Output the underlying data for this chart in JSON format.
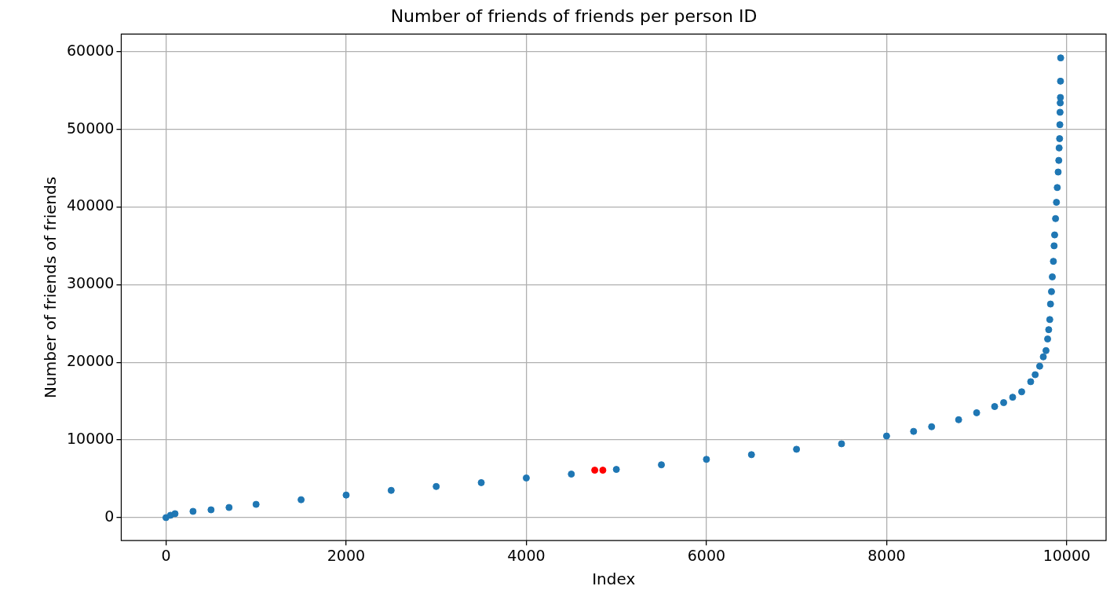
{
  "chart_data": {
    "type": "scatter",
    "title": "Number of friends of friends per person ID",
    "xlabel": "Index",
    "ylabel": "Number of friends of friends",
    "xlim": [
      -497,
      10437
    ],
    "xticks": [
      0,
      2000,
      4000,
      6000,
      8000,
      10000
    ],
    "ylim": [
      -2965,
      62265
    ],
    "yticks": [
      0,
      10000,
      20000,
      30000,
      40000,
      50000,
      60000
    ],
    "grid": true,
    "legend": false,
    "marker": "circle",
    "series": [
      {
        "color": "#1f77b4",
        "x": [
          0,
          50,
          100,
          300,
          500,
          700,
          1000,
          1500,
          2000,
          2500,
          3000,
          3500,
          4000,
          4500,
          5000,
          5500,
          6000,
          6500,
          7000,
          7500,
          8000,
          8300,
          8500,
          8800,
          9000,
          9200,
          9300,
          9400,
          9500,
          9600,
          9650,
          9700,
          9740,
          9770,
          9788,
          9800,
          9812,
          9820,
          9831,
          9840,
          9852,
          9860,
          9866,
          9876,
          9886,
          9895,
          9905,
          9912,
          9916,
          9921,
          9924,
          9926,
          9928,
          9930,
          9931,
          9933
        ],
        "values": [
          0,
          300,
          500,
          800,
          1000,
          1300,
          1700,
          2300,
          2900,
          3500,
          4000,
          4500,
          5100,
          5600,
          6200,
          6800,
          7500,
          8100,
          8800,
          9500,
          10500,
          11100,
          11700,
          12600,
          13500,
          14300,
          14800,
          15500,
          16200,
          17500,
          18400,
          19500,
          20700,
          21500,
          23000,
          24200,
          25500,
          27500,
          29100,
          31000,
          33000,
          35000,
          36400,
          38500,
          40600,
          42500,
          44500,
          46000,
          47600,
          48800,
          50600,
          52200,
          53400,
          54100,
          56200,
          59200
        ]
      },
      {
        "color": "#ff0000",
        "x": [
          4760,
          4850
        ],
        "values": [
          6100,
          6100
        ]
      }
    ]
  }
}
